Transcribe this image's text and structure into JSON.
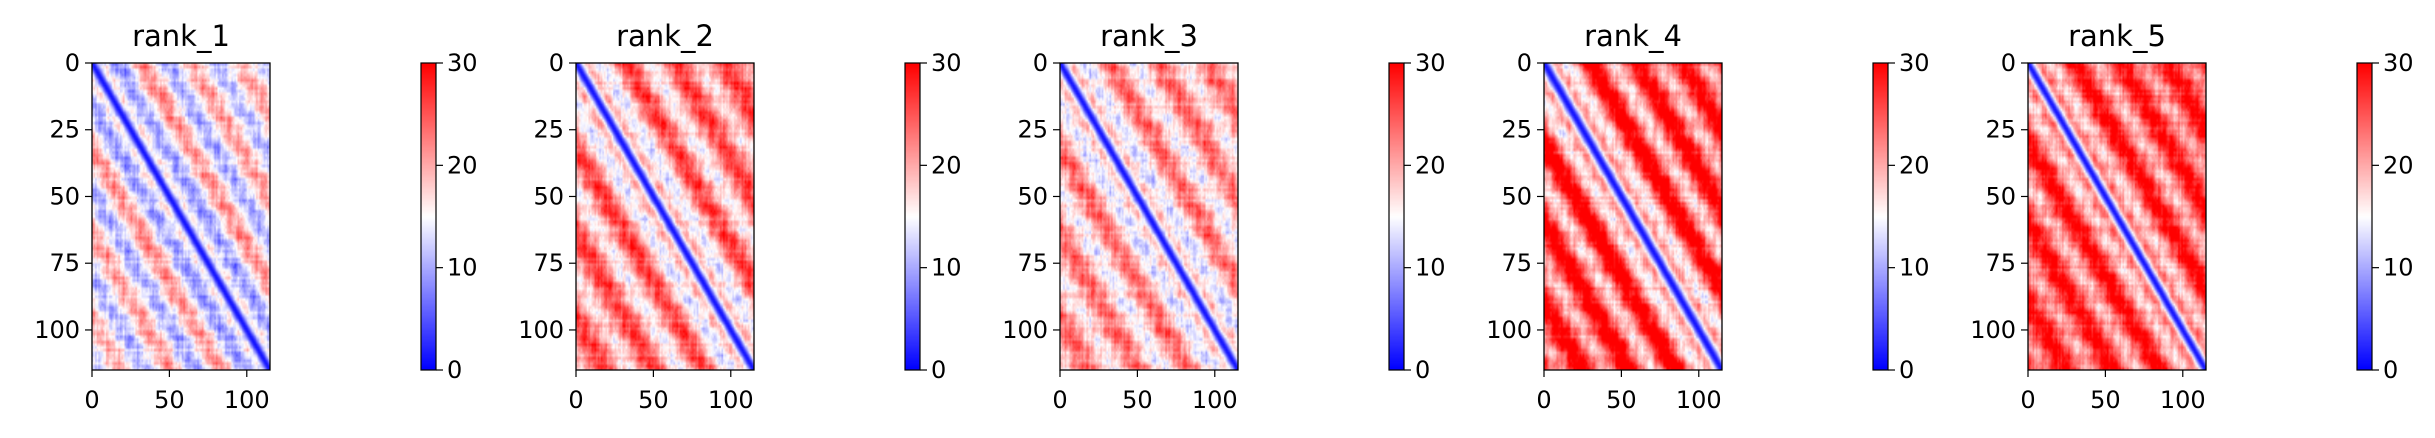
{
  "chart_data": [
    {
      "type": "heatmap",
      "title": "rank_1",
      "matrix_size": 115,
      "x_ticks": [
        0,
        50,
        100
      ],
      "y_ticks": [
        0,
        25,
        50,
        75,
        100
      ],
      "xlim": [
        0,
        115
      ],
      "ylim": [
        115,
        0
      ],
      "colorbar": {
        "vmin": 0,
        "vmax": 30,
        "ticks": [
          0,
          10,
          20,
          30
        ],
        "colormap": "bwr"
      },
      "diagonal_band_width": 3.0,
      "background_level": 15.5,
      "off_diagonal_contrast": 7.0,
      "block_period": 32,
      "far_gradient": 0
    },
    {
      "type": "heatmap",
      "title": "rank_2",
      "matrix_size": 115,
      "x_ticks": [
        0,
        50,
        100
      ],
      "y_ticks": [
        0,
        25,
        50,
        75,
        100
      ],
      "xlim": [
        0,
        115
      ],
      "ylim": [
        115,
        0
      ],
      "colorbar": {
        "vmin": 0,
        "vmax": 30,
        "ticks": [
          0,
          10,
          20,
          30
        ],
        "colormap": "bwr"
      },
      "diagonal_band_width": 3.2,
      "background_level": 19.5,
      "off_diagonal_contrast": 7.0,
      "block_period": 32,
      "far_gradient": 3
    },
    {
      "type": "heatmap",
      "title": "rank_3",
      "matrix_size": 115,
      "x_ticks": [
        0,
        50,
        100
      ],
      "y_ticks": [
        0,
        25,
        50,
        75,
        100
      ],
      "xlim": [
        0,
        115
      ],
      "ylim": [
        115,
        0
      ],
      "colorbar": {
        "vmin": 0,
        "vmax": 30,
        "ticks": [
          0,
          10,
          20,
          30
        ],
        "colormap": "bwr"
      },
      "diagonal_band_width": 3.0,
      "background_level": 18.5,
      "off_diagonal_contrast": 6.0,
      "block_period": 32,
      "far_gradient": 2
    },
    {
      "type": "heatmap",
      "title": "rank_4",
      "matrix_size": 115,
      "x_ticks": [
        0,
        50,
        100
      ],
      "y_ticks": [
        0,
        25,
        50,
        75,
        100
      ],
      "xlim": [
        0,
        115
      ],
      "ylim": [
        115,
        0
      ],
      "colorbar": {
        "vmin": 0,
        "vmax": 30,
        "ticks": [
          0,
          10,
          20,
          30
        ],
        "colormap": "bwr"
      },
      "diagonal_band_width": 3.8,
      "background_level": 24.0,
      "off_diagonal_contrast": 9.0,
      "block_period": 30,
      "far_gradient": 2
    },
    {
      "type": "heatmap",
      "title": "rank_5",
      "matrix_size": 115,
      "x_ticks": [
        0,
        50,
        100
      ],
      "y_ticks": [
        0,
        25,
        50,
        75,
        100
      ],
      "xlim": [
        0,
        115
      ],
      "ylim": [
        115,
        0
      ],
      "colorbar": {
        "vmin": 0,
        "vmax": 30,
        "ticks": [
          0,
          10,
          20,
          30
        ],
        "colormap": "bwr"
      },
      "diagonal_band_width": 3.2,
      "background_level": 24.0,
      "off_diagonal_contrast": 7.0,
      "block_period": 30,
      "far_gradient": 2
    }
  ]
}
